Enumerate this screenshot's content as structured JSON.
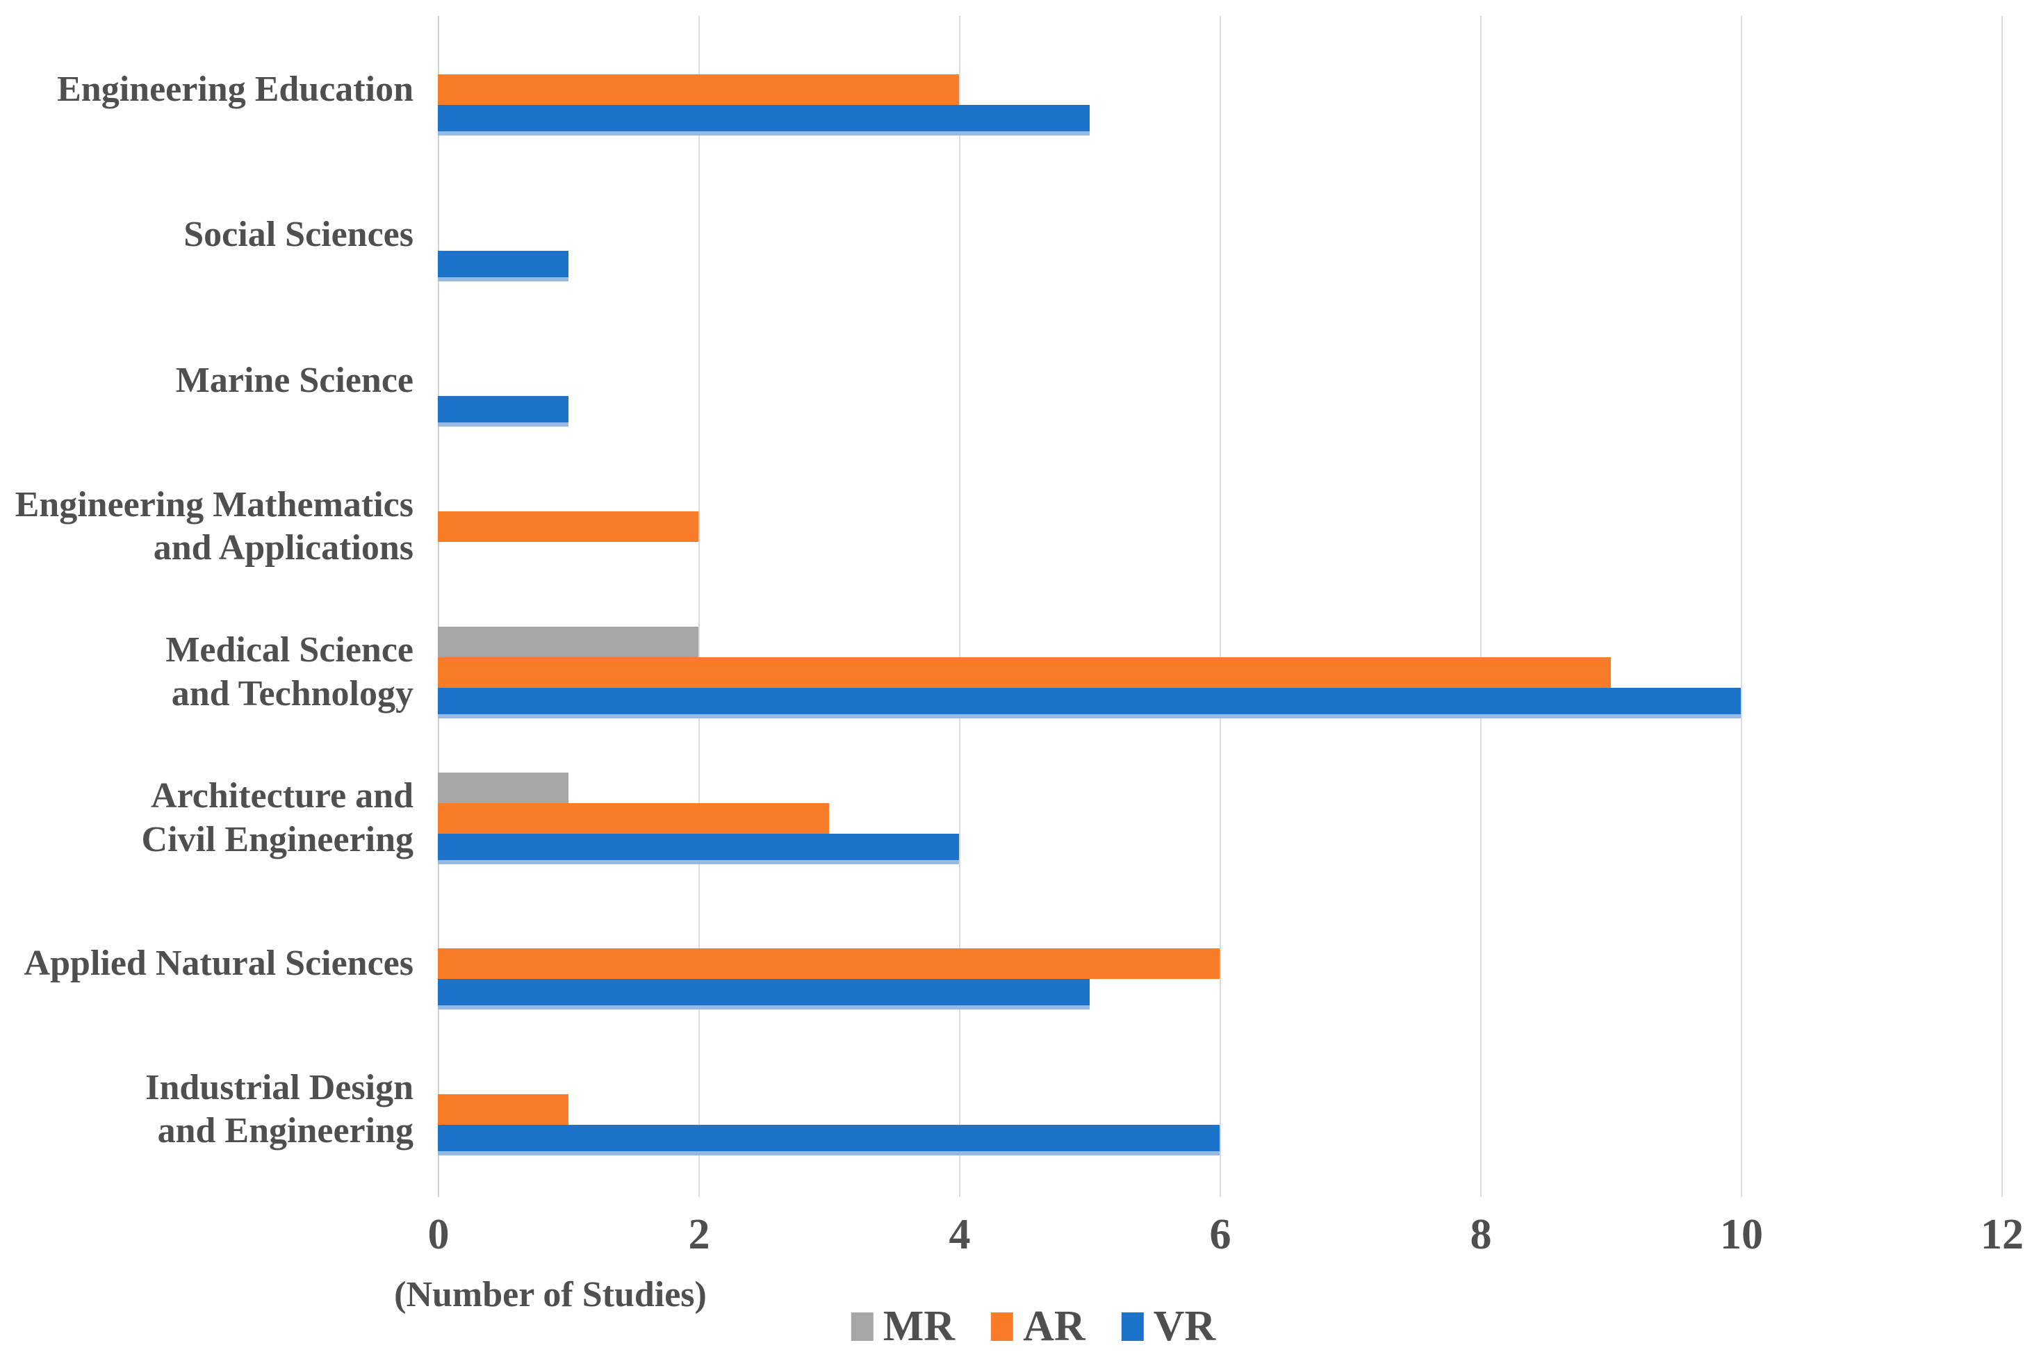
{
  "chart_data": {
    "type": "bar",
    "orientation": "horizontal",
    "title": "",
    "xlabel": "(Number of Studies)",
    "ylabel": "",
    "xlim": [
      0,
      12
    ],
    "xticks": [
      0,
      2,
      4,
      6,
      8,
      10,
      12
    ],
    "grid": true,
    "legend_position": "bottom",
    "categories": [
      "Engineering Education",
      "Social Sciences",
      "Marine Science",
      "Engineering Mathematics\nand Applications",
      "Medical Science\nand Technology",
      "Architecture and\nCivil Engineering",
      "Applied Natural Sciences",
      "Industrial Design\nand Engineering"
    ],
    "series": [
      {
        "name": "MR",
        "color": "#A6A6A6",
        "values": [
          0,
          0,
          0,
          0,
          2,
          1,
          0,
          0
        ]
      },
      {
        "name": "AR",
        "color": "#F97D28",
        "values": [
          4,
          0,
          0,
          2,
          9,
          3,
          6,
          1
        ]
      },
      {
        "name": "VR",
        "color": "#1B74C9",
        "values": [
          5,
          1,
          1,
          0,
          10,
          4,
          5,
          6
        ]
      }
    ]
  },
  "colors": {
    "text": "#4F4F4F",
    "gridline": "#DCDCDC",
    "vr_bottom_edge": "#96BAE4",
    "background": "#FFFFFF"
  }
}
